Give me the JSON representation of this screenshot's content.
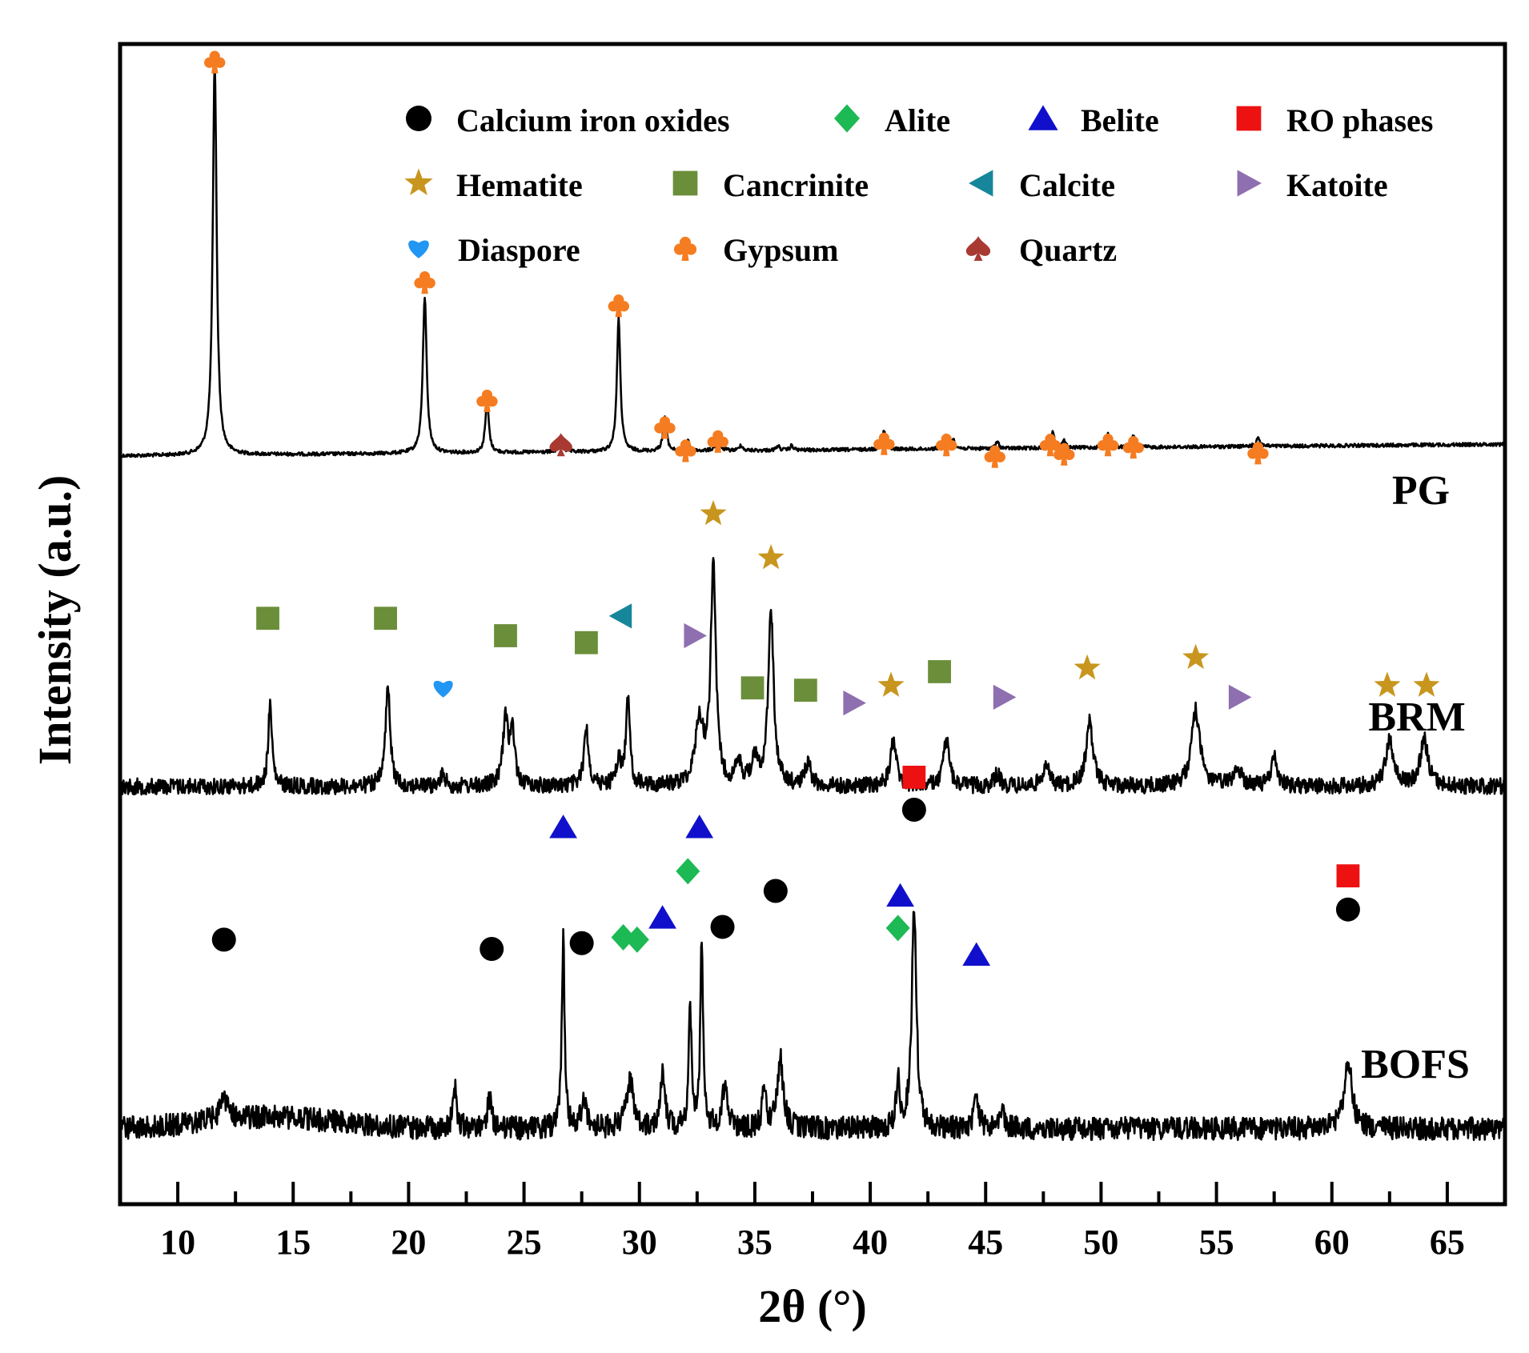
{
  "chart_data": {
    "type": "line",
    "subtype": "xrd-pattern-stacked",
    "xlabel": "2θ (°)",
    "ylabel": "Intensity (a.u.)",
    "xlim": [
      7.5,
      67.5
    ],
    "ylim": [
      0,
      1
    ],
    "x_ticks": [
      10,
      15,
      20,
      25,
      30,
      35,
      40,
      45,
      50,
      55,
      60,
      65
    ],
    "x_tick_labels": [
      "10",
      "15",
      "20",
      "25",
      "30",
      "35",
      "40",
      "45",
      "50",
      "55",
      "60",
      "65"
    ],
    "y_ticks": false,
    "legend_position": "top",
    "legend": [
      {
        "name": "Calcium iron oxides",
        "marker": "circle",
        "color": "#000000"
      },
      {
        "name": "Alite",
        "marker": "diamond",
        "color": "#1db954"
      },
      {
        "name": "Belite",
        "marker": "triangle-up",
        "color": "#1010cc"
      },
      {
        "name": "RO phases",
        "marker": "square",
        "color": "#ee1111"
      },
      {
        "name": "Hematite",
        "marker": "star",
        "color": "#c8961e"
      },
      {
        "name": "Cancrinite",
        "marker": "square",
        "color": "#6b8e3a"
      },
      {
        "name": "Calcite",
        "marker": "triangle-left",
        "color": "#17869a"
      },
      {
        "name": "Katoite",
        "marker": "triangle-right",
        "color": "#8e6fb0"
      },
      {
        "name": "Diaspore",
        "marker": "heart",
        "color": "#2196f3"
      },
      {
        "name": "Gypsum",
        "marker": "club",
        "color": "#f57c20"
      },
      {
        "name": "Quartz",
        "marker": "spade",
        "color": "#a83a32"
      }
    ],
    "series": [
      {
        "name": "PG",
        "baseline": 0.355,
        "baseline_slope": -0.01,
        "noise": 0.0015,
        "peaks": [
          {
            "x": 11.6,
            "h": 0.34,
            "w": 0.1
          },
          {
            "x": 20.7,
            "h": 0.135,
            "w": 0.1
          },
          {
            "x": 23.4,
            "h": 0.045,
            "w": 0.09
          },
          {
            "x": 26.6,
            "h": 0.01,
            "w": 0.1
          },
          {
            "x": 29.1,
            "h": 0.115,
            "w": 0.09
          },
          {
            "x": 31.1,
            "h": 0.03,
            "w": 0.09
          },
          {
            "x": 32.1,
            "h": 0.01,
            "w": 0.08
          },
          {
            "x": 33.4,
            "h": 0.015,
            "w": 0.09
          },
          {
            "x": 34.4,
            "h": 0.005,
            "w": 0.08
          },
          {
            "x": 36.0,
            "h": 0.004,
            "w": 0.08
          },
          {
            "x": 36.6,
            "h": 0.004,
            "w": 0.08
          },
          {
            "x": 40.6,
            "h": 0.016,
            "w": 0.09
          },
          {
            "x": 43.3,
            "h": 0.012,
            "w": 0.09
          },
          {
            "x": 43.6,
            "h": 0.008,
            "w": 0.08
          },
          {
            "x": 45.5,
            "h": 0.006,
            "w": 0.08
          },
          {
            "x": 47.9,
            "h": 0.014,
            "w": 0.09
          },
          {
            "x": 48.4,
            "h": 0.006,
            "w": 0.08
          },
          {
            "x": 50.3,
            "h": 0.012,
            "w": 0.09
          },
          {
            "x": 51.4,
            "h": 0.01,
            "w": 0.09
          },
          {
            "x": 56.8,
            "h": 0.008,
            "w": 0.09
          }
        ]
      },
      {
        "name": "BRM",
        "baseline": 0.64,
        "baseline_slope": 0.0,
        "noise": 0.007,
        "peaks": [
          {
            "x": 14.0,
            "h": 0.07,
            "w": 0.1
          },
          {
            "x": 19.1,
            "h": 0.085,
            "w": 0.12
          },
          {
            "x": 21.5,
            "h": 0.012,
            "w": 0.1
          },
          {
            "x": 24.2,
            "h": 0.055,
            "w": 0.14
          },
          {
            "x": 24.5,
            "h": 0.045,
            "w": 0.12
          },
          {
            "x": 27.7,
            "h": 0.05,
            "w": 0.12
          },
          {
            "x": 29.1,
            "h": 0.02,
            "w": 0.15
          },
          {
            "x": 29.5,
            "h": 0.075,
            "w": 0.1
          },
          {
            "x": 32.6,
            "h": 0.055,
            "w": 0.22
          },
          {
            "x": 33.2,
            "h": 0.19,
            "w": 0.13
          },
          {
            "x": 34.3,
            "h": 0.018,
            "w": 0.15
          },
          {
            "x": 35.0,
            "h": 0.02,
            "w": 0.2
          },
          {
            "x": 35.7,
            "h": 0.15,
            "w": 0.14
          },
          {
            "x": 37.3,
            "h": 0.02,
            "w": 0.15
          },
          {
            "x": 41.0,
            "h": 0.04,
            "w": 0.15
          },
          {
            "x": 43.3,
            "h": 0.04,
            "w": 0.15
          },
          {
            "x": 45.5,
            "h": 0.01,
            "w": 0.15
          },
          {
            "x": 47.6,
            "h": 0.02,
            "w": 0.15
          },
          {
            "x": 49.5,
            "h": 0.055,
            "w": 0.18
          },
          {
            "x": 54.1,
            "h": 0.065,
            "w": 0.22
          },
          {
            "x": 55.9,
            "h": 0.015,
            "w": 0.2
          },
          {
            "x": 57.5,
            "h": 0.025,
            "w": 0.15
          },
          {
            "x": 62.5,
            "h": 0.04,
            "w": 0.2
          },
          {
            "x": 64.0,
            "h": 0.04,
            "w": 0.2
          }
        ]
      },
      {
        "name": "BOFS",
        "baseline": 0.935,
        "baseline_slope": 0.0,
        "noise": 0.01,
        "peaks": [
          {
            "x": 12.0,
            "h": 0.02,
            "w": 0.2
          },
          {
            "x": 22.0,
            "h": 0.035,
            "w": 0.1
          },
          {
            "x": 23.5,
            "h": 0.025,
            "w": 0.12
          },
          {
            "x": 26.7,
            "h": 0.165,
            "w": 0.07
          },
          {
            "x": 27.6,
            "h": 0.025,
            "w": 0.15
          },
          {
            "x": 29.6,
            "h": 0.04,
            "w": 0.18
          },
          {
            "x": 31.0,
            "h": 0.05,
            "w": 0.12
          },
          {
            "x": 32.2,
            "h": 0.1,
            "w": 0.08
          },
          {
            "x": 32.7,
            "h": 0.165,
            "w": 0.07
          },
          {
            "x": 33.7,
            "h": 0.035,
            "w": 0.15
          },
          {
            "x": 35.4,
            "h": 0.03,
            "w": 0.1
          },
          {
            "x": 36.1,
            "h": 0.06,
            "w": 0.15
          },
          {
            "x": 41.2,
            "h": 0.04,
            "w": 0.1
          },
          {
            "x": 41.9,
            "h": 0.19,
            "w": 0.12
          },
          {
            "x": 44.6,
            "h": 0.025,
            "w": 0.12
          },
          {
            "x": 45.7,
            "h": 0.02,
            "w": 0.12
          },
          {
            "x": 60.7,
            "h": 0.06,
            "w": 0.2
          }
        ]
      }
    ],
    "sample_labels": [
      {
        "text": "PG",
        "x": 63.5,
        "y": 0.26
      },
      {
        "text": "BRM",
        "x": 63.0,
        "y": 0.435
      },
      {
        "text": "BOFS",
        "x": 63.0,
        "y": 0.77
      }
    ],
    "annotations": [
      {
        "phase": "Gypsum",
        "x": 11.6,
        "y": 0.015
      },
      {
        "phase": "Gypsum",
        "x": 20.7,
        "y": 0.205
      },
      {
        "phase": "Gypsum",
        "x": 23.4,
        "y": 0.307
      },
      {
        "phase": "Quartz",
        "x": 26.6,
        "y": 0.345
      },
      {
        "phase": "Gypsum",
        "x": 29.1,
        "y": 0.225
      },
      {
        "phase": "Gypsum",
        "x": 31.1,
        "y": 0.33
      },
      {
        "phase": "Gypsum",
        "x": 32.0,
        "y": 0.35
      },
      {
        "phase": "Gypsum",
        "x": 33.4,
        "y": 0.342
      },
      {
        "phase": "Gypsum",
        "x": 40.6,
        "y": 0.344
      },
      {
        "phase": "Gypsum",
        "x": 43.3,
        "y": 0.345
      },
      {
        "phase": "Gypsum",
        "x": 45.4,
        "y": 0.355
      },
      {
        "phase": "Gypsum",
        "x": 47.8,
        "y": 0.345
      },
      {
        "phase": "Gypsum",
        "x": 48.4,
        "y": 0.353
      },
      {
        "phase": "Gypsum",
        "x": 50.3,
        "y": 0.345
      },
      {
        "phase": "Gypsum",
        "x": 51.4,
        "y": 0.347
      },
      {
        "phase": "Gypsum",
        "x": 56.8,
        "y": 0.352
      },
      {
        "phase": "Hematite",
        "x": 33.2,
        "y": 0.405
      },
      {
        "phase": "Hematite",
        "x": 35.7,
        "y": 0.443
      },
      {
        "phase": "Hematite",
        "x": 40.9,
        "y": 0.553
      },
      {
        "phase": "Hematite",
        "x": 49.4,
        "y": 0.538
      },
      {
        "phase": "Hematite",
        "x": 54.1,
        "y": 0.529
      },
      {
        "phase": "Hematite",
        "x": 62.4,
        "y": 0.553
      },
      {
        "phase": "Hematite",
        "x": 64.1,
        "y": 0.553
      },
      {
        "phase": "Cancrinite",
        "x": 13.9,
        "y": 0.495
      },
      {
        "phase": "Cancrinite",
        "x": 19.0,
        "y": 0.495
      },
      {
        "phase": "Cancrinite",
        "x": 24.2,
        "y": 0.51
      },
      {
        "phase": "Cancrinite",
        "x": 27.7,
        "y": 0.516
      },
      {
        "phase": "Cancrinite",
        "x": 34.9,
        "y": 0.555
      },
      {
        "phase": "Cancrinite",
        "x": 37.2,
        "y": 0.557
      },
      {
        "phase": "Cancrinite",
        "x": 43.0,
        "y": 0.541
      },
      {
        "phase": "Calcite",
        "x": 29.2,
        "y": 0.493
      },
      {
        "phase": "Katoite",
        "x": 32.4,
        "y": 0.51
      },
      {
        "phase": "Katoite",
        "x": 39.3,
        "y": 0.568
      },
      {
        "phase": "Katoite",
        "x": 45.8,
        "y": 0.563
      },
      {
        "phase": "Katoite",
        "x": 56.0,
        "y": 0.563
      },
      {
        "phase": "Diaspore",
        "x": 21.5,
        "y": 0.555
      },
      {
        "phase": "RO phases",
        "x": 41.9,
        "y": 0.632
      },
      {
        "phase": "Calcium iron oxides",
        "x": 41.9,
        "y": 0.66
      },
      {
        "phase": "RO phases",
        "x": 60.7,
        "y": 0.717
      },
      {
        "phase": "Calcium iron oxides",
        "x": 60.7,
        "y": 0.746
      },
      {
        "phase": "Belite",
        "x": 26.7,
        "y": 0.675
      },
      {
        "phase": "Belite",
        "x": 32.6,
        "y": 0.675
      },
      {
        "phase": "Alite",
        "x": 32.1,
        "y": 0.713
      },
      {
        "phase": "Calcium iron oxides",
        "x": 35.9,
        "y": 0.73
      },
      {
        "phase": "Belite",
        "x": 41.3,
        "y": 0.734
      },
      {
        "phase": "Alite",
        "x": 41.2,
        "y": 0.762
      },
      {
        "phase": "Belite",
        "x": 31.0,
        "y": 0.753
      },
      {
        "phase": "Calcium iron oxides",
        "x": 33.6,
        "y": 0.761
      },
      {
        "phase": "Alite",
        "x": 29.3,
        "y": 0.77
      },
      {
        "phase": "Alite",
        "x": 29.9,
        "y": 0.772
      },
      {
        "phase": "Calcium iron oxides",
        "x": 12.0,
        "y": 0.772
      },
      {
        "phase": "Calcium iron oxides",
        "x": 23.6,
        "y": 0.78
      },
      {
        "phase": "Calcium iron oxides",
        "x": 27.5,
        "y": 0.775
      },
      {
        "phase": "Belite",
        "x": 44.6,
        "y": 0.785
      }
    ]
  }
}
